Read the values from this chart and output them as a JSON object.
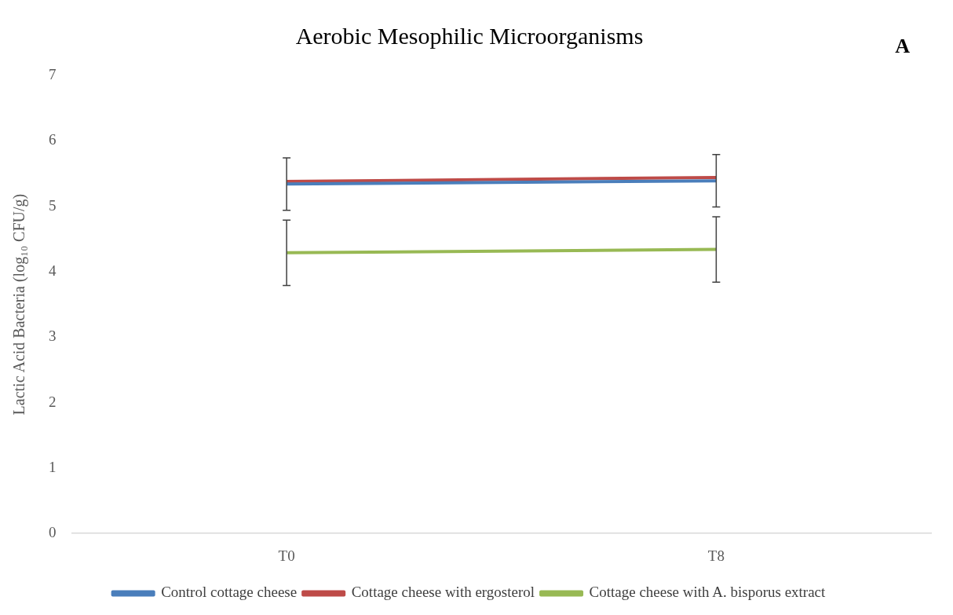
{
  "chart_data": {
    "type": "line",
    "title": "Aerobic Mesophilic Microorganisms",
    "ylabel": "Lactic Acid Bacteria (log₁₀ CFU/g)",
    "annotations": [
      "A"
    ],
    "categories": [
      "T0",
      "T8"
    ],
    "series": [
      {
        "name": "Control cottage cheese",
        "color": "#4a7ebb",
        "values": [
          5.34,
          5.39
        ],
        "errors": [
          0.4,
          0.4
        ]
      },
      {
        "name": "Cottage cheese with ergosterol",
        "color": "#be4b48",
        "values": [
          5.38,
          5.44
        ]
      },
      {
        "name": "Cottage cheese with A. bisporus extract",
        "color": "#98b954",
        "values": [
          4.29,
          4.34
        ],
        "errors": [
          0.5,
          0.5
        ]
      }
    ],
    "ylim": [
      0,
      7
    ],
    "yticks": [
      0,
      1,
      2,
      3,
      4,
      5,
      6,
      7
    ],
    "grid": false,
    "legend": "bottom",
    "marker": "none",
    "line_style": "solid"
  }
}
